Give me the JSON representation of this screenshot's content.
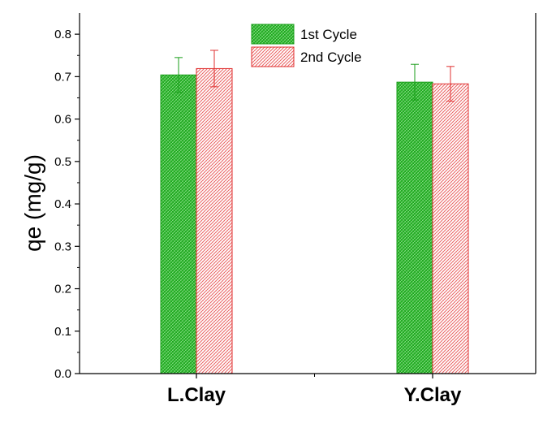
{
  "chart_data": {
    "type": "bar",
    "categories": [
      "L.Clay",
      "Y.Clay"
    ],
    "series": [
      {
        "name": "1st Cycle",
        "values": [
          0.704,
          0.687
        ],
        "errors": [
          0.041,
          0.042
        ],
        "color": "#1a9e1a",
        "fill": "#3cc23c"
      },
      {
        "name": "2nd Cycle",
        "values": [
          0.719,
          0.683
        ],
        "errors": [
          0.043,
          0.041
        ],
        "color": "#e03030",
        "fill": "#f6d4d4"
      }
    ],
    "title": "",
    "xlabel": "",
    "ylabel": "qe (mg/g)",
    "ylim": [
      0,
      0.85
    ],
    "yticks": [
      "0.0",
      "0.1",
      "0.2",
      "0.3",
      "0.4",
      "0.5",
      "0.6",
      "0.7",
      "0.8"
    ],
    "grid": false,
    "legend_position": "top-center",
    "hatch": "crosshatch"
  }
}
